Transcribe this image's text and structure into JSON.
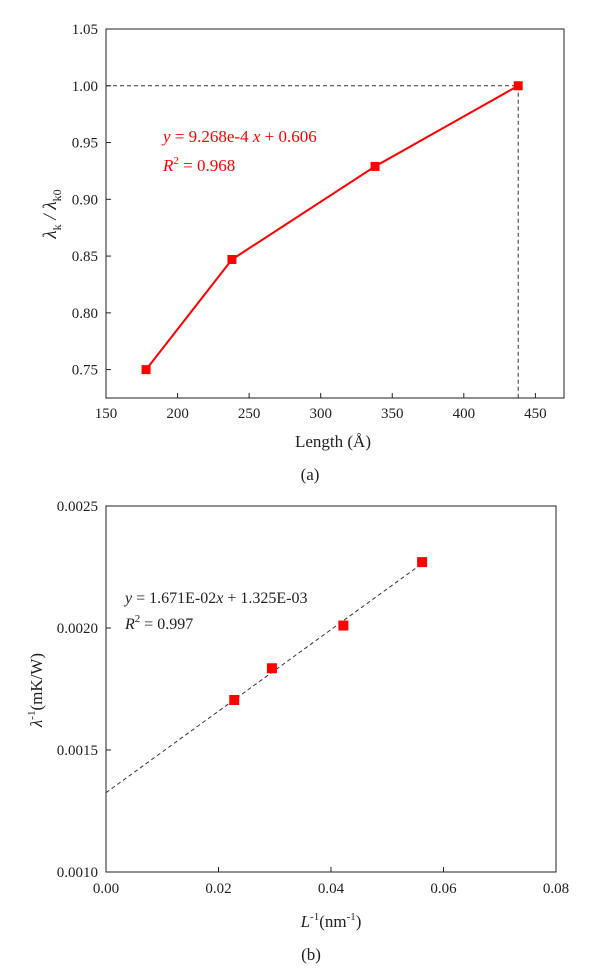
{
  "colors": {
    "series": "#ff0000",
    "axis": "#222222",
    "guide": "#333333"
  },
  "chart_data": [
    {
      "type": "line",
      "panel_label": "(a)",
      "xlabel": "Length (Å)",
      "ylabel_main": "λ",
      "ylabel_sub1": "k",
      "ylabel_mid": " / λ",
      "ylabel_sub2": "k0",
      "xlim": [
        150,
        470
      ],
      "ylim": [
        0.725,
        1.05
      ],
      "xticks": [
        150,
        200,
        250,
        300,
        350,
        400,
        450
      ],
      "yticks": [
        0.75,
        0.8,
        0.85,
        0.9,
        0.95,
        1.0,
        1.05
      ],
      "series": [
        {
          "x": [
            178,
            238,
            338,
            438
          ],
          "y": [
            0.75,
            0.847,
            0.929,
            1.0
          ],
          "color": "#ff0000"
        }
      ],
      "annotations": {
        "equation": {
          "y": "y",
          "rest_a": " = 9.268e-4 ",
          "x": "x",
          "rest_b": " + 0.606"
        },
        "r2": {
          "r": "R",
          "sup": "2",
          "rest": " = 0.968"
        }
      },
      "reference_lines": {
        "y": 1.0,
        "x": 438,
        "style": "dashed"
      }
    },
    {
      "type": "scatter",
      "panel_label": "(b)",
      "xlabel_main": "L",
      "xlabel_sup": "-1",
      "xlabel_rest_a": "(nm",
      "xlabel_rest_sup": "-1",
      "xlabel_rest_b": ")",
      "ylabel_main": "λ",
      "ylabel_sup": "-1",
      "ylabel_rest": "(mK/W)",
      "xlim": [
        0.0,
        0.08
      ],
      "ylim": [
        0.001,
        0.0025
      ],
      "xticks": [
        "0.00",
        "0.02",
        "0.04",
        "0.06",
        "0.08"
      ],
      "xtick_values": [
        0.0,
        0.02,
        0.04,
        0.06,
        0.08
      ],
      "yticks": [
        "0.0010",
        "0.0015",
        "0.0020",
        "0.0025"
      ],
      "ytick_values": [
        0.001,
        0.0015,
        0.002,
        0.0025
      ],
      "series": [
        {
          "x": [
            0.0228,
            0.0295,
            0.0422,
            0.0562
          ],
          "y": [
            0.001705,
            0.001835,
            0.00201,
            0.00227
          ],
          "color": "#ff0000"
        }
      ],
      "fit": {
        "slope": 0.01671,
        "intercept": 0.001325,
        "style": "dashed"
      },
      "annotations": {
        "equation": {
          "y": "y",
          "rest_a": " = 1.671E-02",
          "x": "x",
          "rest_b": " + 1.325E-03"
        },
        "r2": {
          "r": "R",
          "sup": "2",
          "rest": " = 0.997"
        }
      }
    }
  ]
}
